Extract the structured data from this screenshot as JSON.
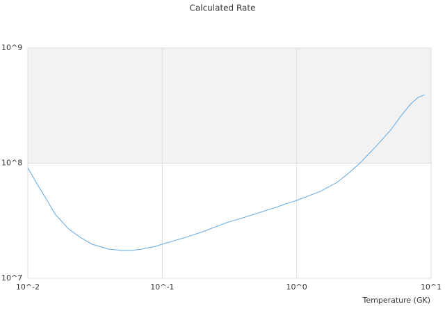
{
  "chart_data": {
    "type": "line",
    "title": "Calculated Rate",
    "x_label": "Temperature (GK)",
    "x": [
      0.01,
      0.012,
      0.014,
      0.016,
      0.02,
      0.025,
      0.03,
      0.04,
      0.05,
      0.06,
      0.07,
      0.08,
      0.09,
      0.1,
      0.15,
      0.2,
      0.3,
      0.4,
      0.5,
      0.6,
      0.7,
      0.8,
      0.9,
      1,
      1.5,
      2,
      2.5,
      3,
      4,
      5,
      6,
      7,
      8,
      9
    ],
    "series": [
      {
        "color": "#5fa8e3",
        "values": [
          91000000,
          63000000,
          47000000,
          36000000,
          27000000,
          22400000,
          19800000,
          17900000,
          17500000,
          17500000,
          17900000,
          18500000,
          19000000,
          19800000,
          22700000,
          25400000,
          30400000,
          33600000,
          36500000,
          39100000,
          41300000,
          43700000,
          45600000,
          47500000,
          56900000,
          68200000,
          84000000,
          102000000,
          145000000,
          194000000,
          259000000,
          324000000,
          372000000,
          394000000
        ]
      }
    ],
    "xlim": [
      0.01,
      10
    ],
    "ylim": [
      10000000,
      1000000000
    ],
    "xticks": [
      {
        "value": 0.01,
        "label": "10^-2"
      },
      {
        "value": 0.1,
        "label": "10^-1"
      },
      {
        "value": 1,
        "label": "10^0"
      },
      {
        "value": 10,
        "label": "10^1"
      }
    ],
    "yticks": [
      {
        "value": 10000000,
        "label": "10^7"
      },
      {
        "value": 100000000,
        "label": "10^8"
      },
      {
        "value": 1000000000,
        "label": "10^9"
      }
    ],
    "x_log": true,
    "y_log": true,
    "grid": true
  }
}
